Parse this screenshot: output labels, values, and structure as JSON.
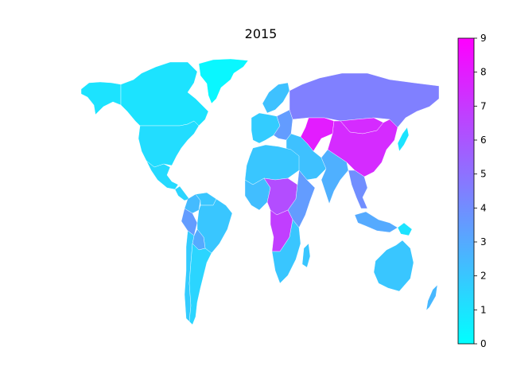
{
  "title": "2015",
  "colors": {
    "cmap_low": "#00ffff",
    "cmap_high": "#ff00ff"
  },
  "colorbar": {
    "min": 0,
    "max": 9,
    "ticks": [
      "0",
      "1",
      "2",
      "3",
      "4",
      "5",
      "6",
      "7",
      "8",
      "9"
    ]
  },
  "chart_data": {
    "type": "choropleth",
    "title": "2015",
    "colormap": "cool",
    "vmin": 0,
    "vmax": 9,
    "regions": [
      {
        "name": "Greenland",
        "value": 0.3
      },
      {
        "name": "Canada",
        "value": 1.0
      },
      {
        "name": "Alaska",
        "value": 1.0
      },
      {
        "name": "United States",
        "value": 1.2
      },
      {
        "name": "Mexico",
        "value": 1.3
      },
      {
        "name": "Central America",
        "value": 1.5
      },
      {
        "name": "Colombia",
        "value": 2.4
      },
      {
        "name": "Venezuela",
        "value": 2.0
      },
      {
        "name": "Peru",
        "value": 3.5
      },
      {
        "name": "Brazil",
        "value": 2.0
      },
      {
        "name": "Bolivia",
        "value": 3.0
      },
      {
        "name": "Argentina",
        "value": 1.5
      },
      {
        "name": "Chile",
        "value": 1.8
      },
      {
        "name": "Western Europe",
        "value": 1.8
      },
      {
        "name": "Scandinavia",
        "value": 2.2
      },
      {
        "name": "Eastern Europe",
        "value": 3.5
      },
      {
        "name": "Russia",
        "value": 4.5
      },
      {
        "name": "Kazakhstan",
        "value": 8.0
      },
      {
        "name": "China",
        "value": 7.5
      },
      {
        "name": "Mongolia",
        "value": 7.5
      },
      {
        "name": "Japan",
        "value": 1.0
      },
      {
        "name": "India",
        "value": 2.8
      },
      {
        "name": "Middle East",
        "value": 2.2
      },
      {
        "name": "Southeast Asia",
        "value": 4.0
      },
      {
        "name": "North Africa",
        "value": 2.0
      },
      {
        "name": "West Africa",
        "value": 2.3
      },
      {
        "name": "Central Africa",
        "value": 6.3
      },
      {
        "name": "Angola",
        "value": 6.8
      },
      {
        "name": "East Africa",
        "value": 3.5
      },
      {
        "name": "Southern Africa",
        "value": 2.0
      },
      {
        "name": "Madagascar",
        "value": 2.0
      },
      {
        "name": "Indonesia",
        "value": 3.0
      },
      {
        "name": "Papua New Guinea",
        "value": 1.0
      },
      {
        "name": "Australia",
        "value": 2.0
      },
      {
        "name": "New Zealand",
        "value": 2.5
      }
    ]
  }
}
